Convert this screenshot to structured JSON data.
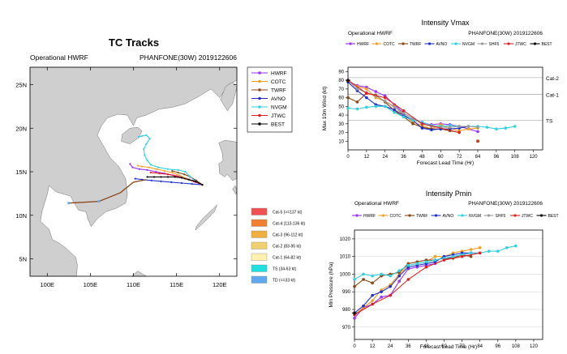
{
  "colors": {
    "HWRF": "#9b30ff",
    "COTC": "#f0a020",
    "TWRF": "#8b4513",
    "AVNO": "#1f2fc8",
    "NVGM": "#30d0e0",
    "SHF5": "#9a9a9a",
    "JTWC": "#e02020",
    "BEST": "#000000",
    "land": "#cfcfcf",
    "ocean": "#ffffff"
  },
  "chart_data": [
    {
      "type": "line",
      "panel": "tracks",
      "title": "TC Tracks",
      "subtitle_left": "Operational HWRF",
      "subtitle_right": "PHANFONE(30W) 2019122606",
      "xlim": [
        98,
        122
      ],
      "ylim": [
        3,
        27
      ],
      "xticks": [
        100,
        105,
        110,
        115,
        120
      ],
      "xtick_labels": [
        "100E",
        "105E",
        "110E",
        "115E",
        "120E"
      ],
      "yticks": [
        5,
        10,
        15,
        20,
        25
      ],
      "ytick_labels": [
        "5N",
        "10N",
        "15N",
        "20N",
        "25N"
      ],
      "legend": [
        "HWRF",
        "COTC",
        "TWRF",
        "AVNO",
        "NVGM",
        "JTWC",
        "BEST"
      ],
      "series": [
        {
          "name": "HWRF",
          "lon": [
            118.0,
            117.2,
            116.5,
            115.6,
            114.6,
            113.6,
            112.6,
            111.6,
            110.7,
            109.9,
            109.6
          ],
          "lat": [
            13.5,
            13.8,
            14.1,
            14.4,
            14.6,
            14.8,
            15.0,
            15.2,
            15.3,
            15.5,
            15.9
          ]
        },
        {
          "name": "COTC",
          "lon": [
            118.0,
            117.0,
            116.2,
            115.3,
            114.5,
            113.6,
            112.7,
            111.8,
            111.0,
            110.5
          ],
          "lat": [
            13.5,
            13.9,
            14.2,
            14.6,
            14.9,
            15.1,
            15.3,
            15.5,
            15.6,
            15.7
          ]
        },
        {
          "name": "TWRF",
          "lon": [
            118.0,
            117.3,
            116.6,
            115.9,
            115.2,
            114.5
          ],
          "lat": [
            13.5,
            14.0,
            14.4,
            14.7,
            14.9,
            15.1
          ]
        },
        {
          "name": "AVNO",
          "lon": [
            118.0,
            116.8,
            115.6,
            114.4,
            113.2,
            112.1,
            111.0,
            110.2
          ],
          "lat": [
            13.5,
            13.6,
            13.7,
            13.8,
            13.9,
            14.0,
            14.1,
            14.2
          ]
        },
        {
          "name": "NVGM",
          "lon": [
            118.0,
            117.3,
            116.5,
            116.0,
            115.2,
            114.0,
            112.9,
            112.0,
            111.6,
            111.3,
            111.2,
            111.5,
            111.9,
            111.5,
            111.0,
            110.6
          ],
          "lat": [
            13.5,
            13.8,
            14.5,
            15.0,
            15.2,
            15.3,
            15.5,
            15.8,
            16.3,
            16.9,
            17.6,
            18.2,
            18.8,
            19.2,
            19.1,
            19.0
          ]
        },
        {
          "name": "JTWC",
          "lon": [
            118.0,
            117.0,
            116.0,
            115.0,
            114.0,
            113.0,
            112.0
          ],
          "lat": [
            13.5,
            13.9,
            14.2,
            14.5,
            14.7,
            14.8,
            14.9
          ]
        },
        {
          "name": "BEST",
          "lon": [
            118.0,
            117.2,
            116.4,
            115.6,
            114.8,
            114.0,
            113.2,
            112.4,
            111.6
          ],
          "lat": [
            13.5,
            13.9,
            14.1,
            14.3,
            14.4,
            14.4,
            14.4,
            14.4,
            14.4
          ]
        },
        {
          "name": "past",
          "lon": [
            102.5,
            106.0,
            108.5,
            110.0,
            111.5
          ],
          "lat": [
            11.4,
            11.6,
            12.6,
            13.8,
            14.1
          ]
        }
      ],
      "intensity_legend": [
        {
          "label": "Cat-5 (>=137 kt)",
          "color": "#f05050"
        },
        {
          "label": "Cat-4 (113-136 kt)",
          "color": "#f08030"
        },
        {
          "label": "Cat-3 (96-112 kt)",
          "color": "#f0b040"
        },
        {
          "label": "Cat-2 (83-95 kt)",
          "color": "#f0d070"
        },
        {
          "label": "Cat-1 (64-82 kt)",
          "color": "#fff2b0"
        },
        {
          "label": "TS (34-63 kt)",
          "color": "#20e0e0"
        },
        {
          "label": "TD (<=33 kt)",
          "color": "#60a8f0"
        }
      ]
    },
    {
      "type": "line",
      "panel": "vmax",
      "title": "Intensity Vmax",
      "subtitle_left": "Operational HWRF",
      "subtitle_right": "PHANFONE(30W) 2019122606",
      "xlabel": "Forecast Lead Time (Hr)",
      "ylabel": "Max 10m Wind (kt)",
      "xlim": [
        0,
        126
      ],
      "ylim": [
        0,
        95
      ],
      "xticks": [
        0,
        12,
        24,
        36,
        48,
        60,
        72,
        84,
        96,
        108,
        120
      ],
      "yticks": [
        10,
        20,
        30,
        40,
        50,
        60,
        70,
        80,
        90
      ],
      "thresholds": [
        {
          "label": "Cat-2",
          "value": 83
        },
        {
          "label": "Cat-1",
          "value": 64
        },
        {
          "label": "TS",
          "value": 34
        }
      ],
      "legend": [
        "HWRF",
        "COTC",
        "TWRF",
        "AVNO",
        "NVGM",
        "SHF5",
        "JTWC",
        "BEST"
      ],
      "series": [
        {
          "name": "HWRF",
          "x": [
            0,
            6,
            12,
            18,
            24,
            30,
            36,
            42,
            48,
            54,
            60,
            66,
            72,
            78,
            84
          ],
          "y": [
            79,
            74,
            72,
            67,
            62,
            52,
            42,
            36,
            31,
            29,
            30,
            29,
            27,
            24,
            21
          ]
        },
        {
          "name": "COTC",
          "x": [
            0,
            6,
            12,
            18,
            24,
            30,
            36,
            42,
            48,
            54,
            60,
            66,
            72,
            78,
            84
          ],
          "y": [
            80,
            73,
            70,
            60,
            56,
            50,
            40,
            32,
            28,
            24,
            29,
            25,
            22,
            24,
            25
          ]
        },
        {
          "name": "TWRF",
          "x": [
            0,
            6,
            12,
            18,
            24,
            30,
            36,
            42,
            48,
            54,
            60,
            66,
            72
          ],
          "y": [
            60,
            55,
            65,
            63,
            55,
            45,
            38,
            30,
            26,
            24,
            24,
            22,
            20
          ]
        },
        {
          "name": "AVNO",
          "x": [
            0,
            6,
            12,
            18,
            24,
            30,
            36,
            42,
            48,
            54,
            60,
            66,
            72,
            78
          ],
          "y": [
            78,
            68,
            60,
            52,
            50,
            46,
            40,
            34,
            25,
            23,
            24,
            24,
            25,
            27
          ]
        },
        {
          "name": "NVGM",
          "x": [
            0,
            6,
            12,
            18,
            24,
            30,
            36,
            42,
            48,
            54,
            60,
            66,
            72,
            78,
            84,
            90,
            96,
            102,
            108
          ],
          "y": [
            48,
            47,
            49,
            50,
            50,
            43,
            38,
            34,
            32,
            28,
            27,
            28,
            27,
            27,
            27,
            26,
            24,
            25,
            27
          ]
        },
        {
          "name": "SHF5",
          "x": [
            0,
            6,
            12,
            18,
            24,
            30,
            36,
            42,
            48,
            54,
            60,
            66,
            72,
            78,
            84
          ],
          "y": [
            80,
            70,
            66,
            62,
            56,
            49,
            42,
            36,
            30,
            27,
            26,
            26,
            27,
            27,
            26
          ]
        },
        {
          "name": "JTWC",
          "x": [
            0,
            12,
            24,
            36,
            48,
            72,
            84
          ],
          "y": [
            80,
            65,
            60,
            45,
            30,
            20,
            10
          ]
        },
        {
          "name": "BEST",
          "x": [
            0
          ],
          "y": [
            80
          ]
        }
      ]
    },
    {
      "type": "line",
      "panel": "pmin",
      "title": "Intensity Pmin",
      "subtitle_left": "Operational HWRF",
      "subtitle_right": "PHANFONE(30W) 2019122606",
      "xlabel": "Forecast Lead Time (Hr)",
      "ylabel": "Min Pressure (hPa)",
      "xlim": [
        0,
        126
      ],
      "ylim": [
        963,
        1025
      ],
      "xticks": [
        0,
        12,
        24,
        36,
        48,
        60,
        72,
        84,
        96,
        108,
        120
      ],
      "yticks": [
        970,
        980,
        990,
        1000,
        1010,
        1020
      ],
      "legend": [
        "HWRF",
        "COTC",
        "TWRF",
        "AVNO",
        "NVGM",
        "SHF5",
        "JTWC",
        "BEST"
      ],
      "series": [
        {
          "name": "HWRF",
          "x": [
            0,
            6,
            12,
            18,
            24,
            30,
            36,
            42,
            48,
            54,
            60,
            66,
            72,
            78,
            84
          ],
          "y": [
            975,
            981,
            983,
            987,
            988,
            996,
            1003,
            1004,
            1005,
            1006,
            1008,
            1010,
            1011,
            1012,
            1012
          ]
        },
        {
          "name": "COTC",
          "x": [
            0,
            6,
            12,
            18,
            24,
            30,
            36,
            42,
            48,
            54,
            60,
            66,
            72,
            78,
            84
          ],
          "y": [
            977,
            981,
            985,
            991,
            994,
            1000,
            1005,
            1006,
            1007,
            1010,
            1010,
            1012,
            1013,
            1014,
            1015
          ]
        },
        {
          "name": "TWRF",
          "x": [
            0,
            6,
            12,
            18,
            24,
            30,
            36,
            42,
            48,
            54,
            60,
            66,
            72,
            78
          ],
          "y": [
            993,
            997,
            995,
            999,
            1000,
            1001,
            1006,
            1007,
            1008,
            1008,
            1009,
            1009,
            1011,
            1010
          ]
        },
        {
          "name": "AVNO",
          "x": [
            0,
            6,
            12,
            18,
            24,
            30,
            36,
            42,
            48,
            54,
            60,
            66,
            72,
            78
          ],
          "y": [
            978,
            982,
            988,
            990,
            993,
            999,
            1004,
            1005,
            1006,
            1007,
            1010,
            1011,
            1012,
            1012
          ]
        },
        {
          "name": "NVGM",
          "x": [
            0,
            6,
            12,
            18,
            24,
            30,
            36,
            42,
            48,
            54,
            60,
            66,
            72,
            78,
            84,
            90,
            96,
            102,
            108
          ],
          "y": [
            997,
            1000,
            999,
            1000,
            999,
            1002,
            1005,
            1006,
            1007,
            1008,
            1009,
            1010,
            1011,
            1012,
            1012,
            1013,
            1013,
            1015,
            1016
          ]
        },
        {
          "name": "JTWC",
          "x": [
            0,
            12,
            24,
            36,
            48,
            60,
            72,
            84
          ],
          "y": [
            977,
            983,
            988,
            997,
            1004,
            1008,
            1010,
            1012
          ]
        },
        {
          "name": "BEST",
          "x": [
            0
          ],
          "y": [
            978
          ]
        }
      ]
    }
  ]
}
